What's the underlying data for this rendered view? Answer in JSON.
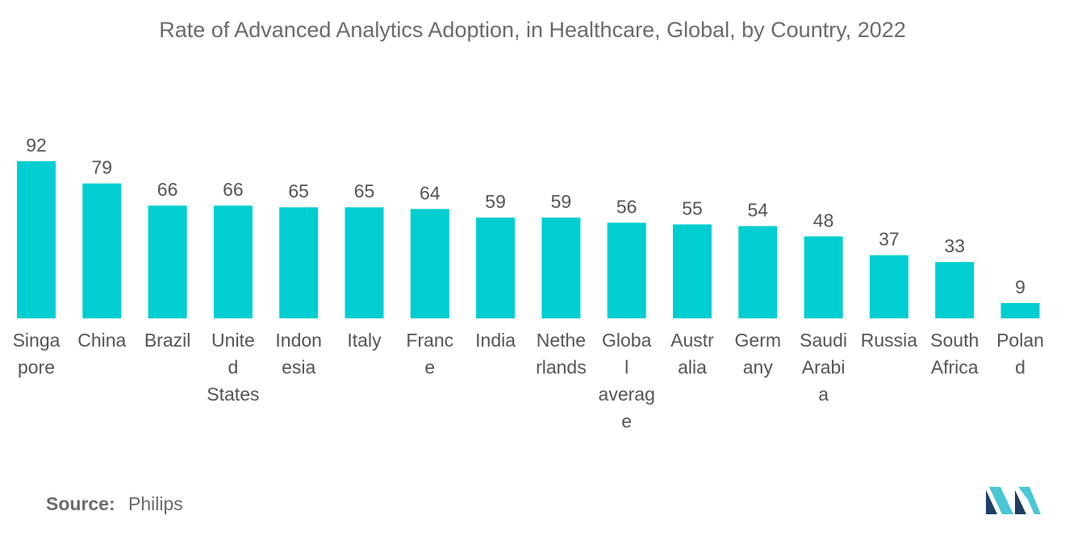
{
  "chart_data": {
    "type": "bar",
    "title": "Rate of Advanced Analytics Adoption, in Healthcare, Global, by Country, 2022",
    "categories": [
      "Singapore",
      "China",
      "Brazil",
      "United States",
      "Indonesia",
      "Italy",
      "France",
      "India",
      "Netherlands",
      "Global average",
      "Australia",
      "Germany",
      "Saudi Arabia",
      "Russia",
      "South Africa",
      "Poland"
    ],
    "category_label_lines": [
      [
        "Singa",
        "pore"
      ],
      [
        "China"
      ],
      [
        "Brazil"
      ],
      [
        "Unite",
        "d",
        "States"
      ],
      [
        "Indon",
        "esia"
      ],
      [
        "Italy"
      ],
      [
        "Franc",
        "e"
      ],
      [
        "India"
      ],
      [
        "Nethe",
        "rlands"
      ],
      [
        "Globa",
        "l",
        "averag",
        "e"
      ],
      [
        "Austr",
        "alia"
      ],
      [
        "Germ",
        "any"
      ],
      [
        "Saudi",
        "Arabi",
        "a"
      ],
      [
        "Russia"
      ],
      [
        "South",
        "Africa"
      ],
      [
        "Polan",
        "d"
      ]
    ],
    "values": [
      92,
      79,
      66,
      66,
      65,
      65,
      64,
      59,
      59,
      56,
      55,
      54,
      48,
      37,
      33,
      9
    ],
    "xlabel": "",
    "ylabel": "",
    "ylim": [
      0,
      92
    ],
    "grid": false,
    "bar_color": "#00ced1"
  },
  "source": {
    "label": "Source:",
    "value": "Philips"
  },
  "colors": {
    "logo_dark": "#1e3f66",
    "logo_light": "#49c7d4"
  }
}
